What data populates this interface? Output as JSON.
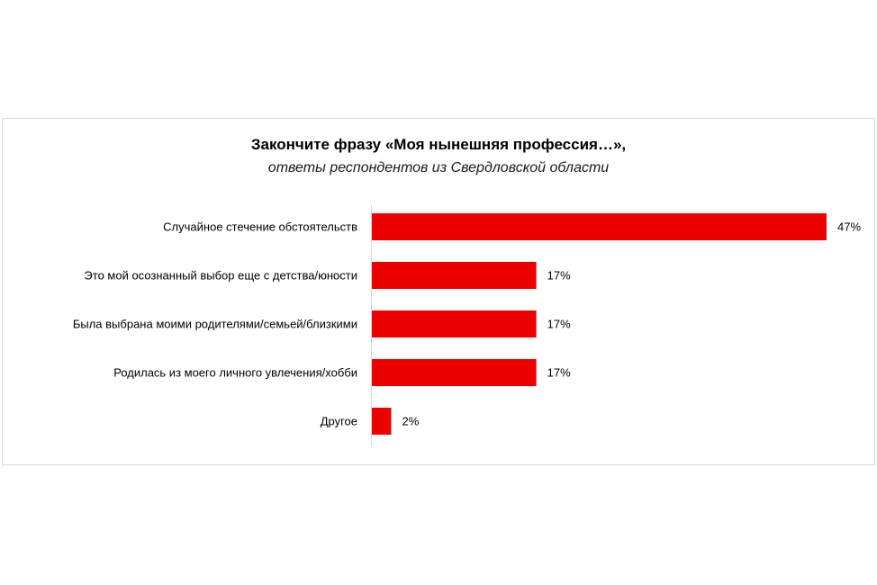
{
  "chart_data": {
    "type": "bar",
    "orientation": "horizontal",
    "title": "Закончите фразу «Моя нынешняя профессия…»,",
    "subtitle": "ответы респондентов из Свердловской области",
    "categories": [
      "Случайное стечение обстоятельств",
      "Это мой осознанный выбор еще с детства/юности",
      "Была выбрана моими родителями/семьей/близкими",
      "Родилась из моего личного увлечения/хобби",
      "Другое"
    ],
    "values": [
      47,
      17,
      17,
      17,
      2
    ],
    "value_labels": [
      "47%",
      "17%",
      "17%",
      "17%",
      "2%"
    ],
    "unit": "%",
    "xlim": [
      0,
      47
    ],
    "grid": false,
    "legend": "none",
    "bar_color": "#ee0000"
  }
}
